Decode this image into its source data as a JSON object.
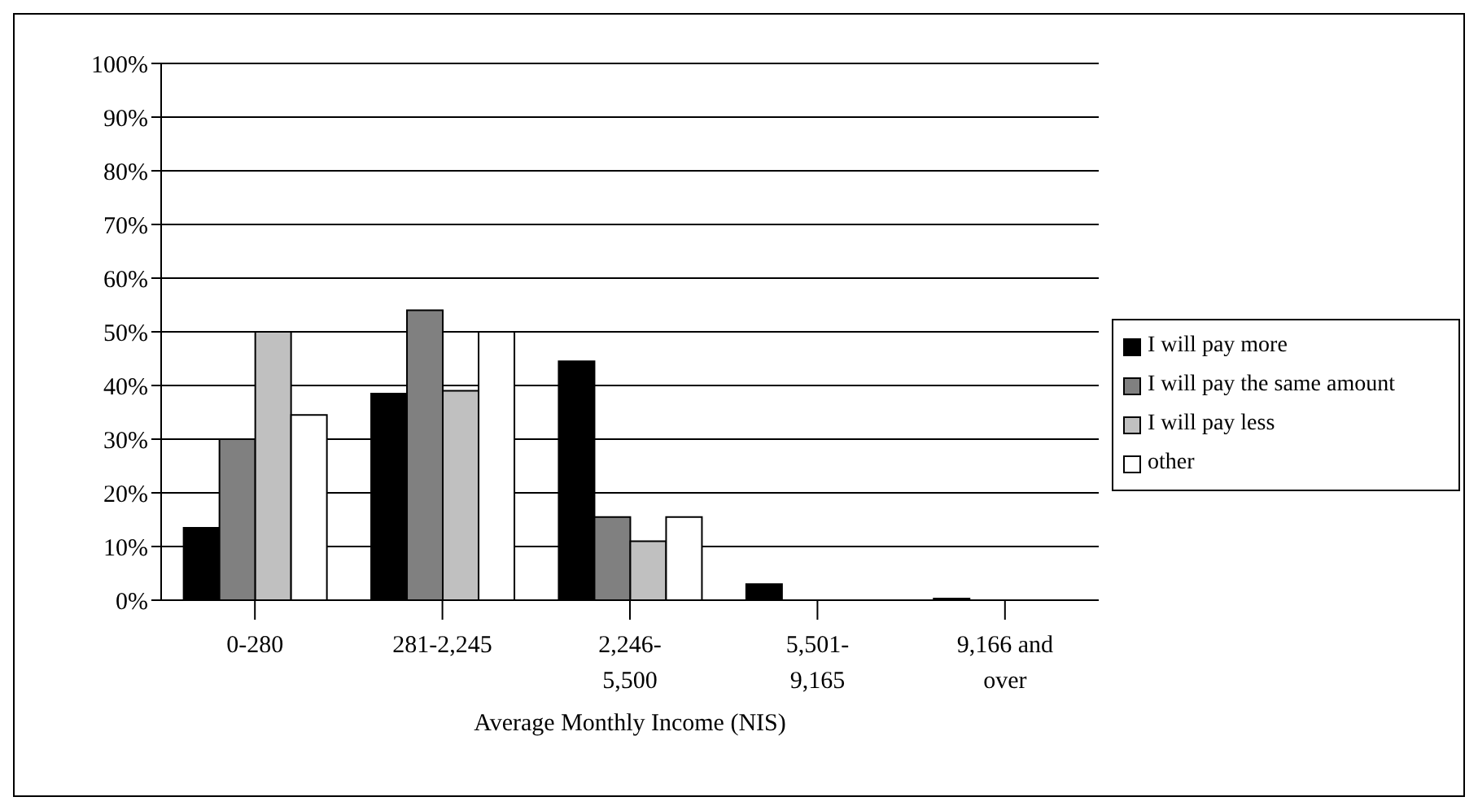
{
  "chart_data": {
    "type": "bar",
    "xlabel": "Average Monthly Income (NIS)",
    "categories": [
      "0-280",
      "281-2,245",
      "2,246-5,500",
      "5,501-9,165",
      "9,166 and over"
    ],
    "series": [
      {
        "name": "I will pay more",
        "color": "#000000",
        "values": [
          13.5,
          38.5,
          44.5,
          3,
          0.3
        ]
      },
      {
        "name": "I will pay the same amount",
        "color": "#808080",
        "values": [
          30,
          54,
          15.5,
          0,
          0
        ]
      },
      {
        "name": "I will pay less",
        "color": "#c0c0c0",
        "values": [
          50,
          39,
          11,
          0,
          0
        ]
      },
      {
        "name": "other",
        "color": "#ffffff",
        "values": [
          34.5,
          50,
          15.5,
          0,
          0
        ]
      }
    ],
    "ylim": [
      0,
      100
    ],
    "yticks": [
      {
        "value": 0,
        "label": "0%"
      },
      {
        "value": 10,
        "label": "10%"
      },
      {
        "value": 20,
        "label": "20%"
      },
      {
        "value": 30,
        "label": "30%"
      },
      {
        "value": 40,
        "label": "40%"
      },
      {
        "value": 50,
        "label": "50%"
      },
      {
        "value": 60,
        "label": "60%"
      },
      {
        "value": 70,
        "label": "70%"
      },
      {
        "value": 80,
        "label": "80%"
      },
      {
        "value": 90,
        "label": "90%"
      },
      {
        "value": 100,
        "label": "100%"
      }
    ],
    "grid": "y",
    "legend": "right"
  }
}
